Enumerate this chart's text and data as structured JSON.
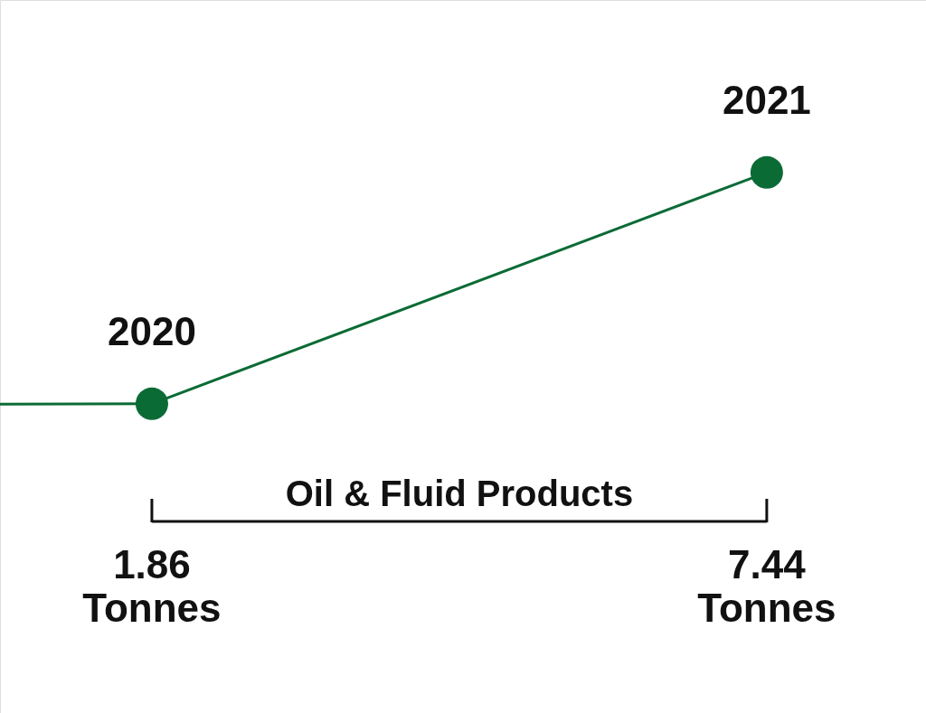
{
  "chart_data": {
    "type": "line",
    "categories": [
      null,
      "2020",
      "2021"
    ],
    "series": [
      {
        "color": "#0b6b35",
        "values": [
          1.82,
          1.86,
          7.44
        ],
        "value_labels": [
          null,
          "1.86 Tonnes",
          "7.44 Tonnes"
        ]
      }
    ],
    "marker": "circle",
    "annotations": [
      "Oil & Fluid Products"
    ]
  }
}
